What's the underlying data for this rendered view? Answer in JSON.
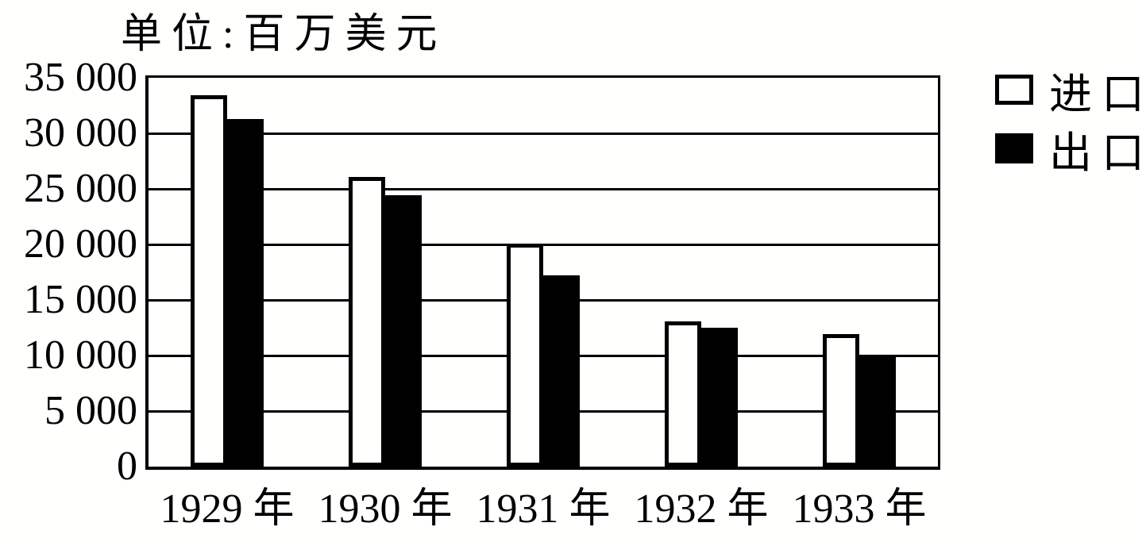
{
  "colors": {
    "foreground": "#000000",
    "background": "#fffffe",
    "import_bar_fill": "#ffffff",
    "export_bar_fill": "#000000"
  },
  "chart_data": {
    "type": "bar",
    "title": "单位:百万美元",
    "xlabel": "",
    "ylabel": "",
    "categories": [
      "1929 年",
      "1930 年",
      "1931 年",
      "1932 年",
      "1933 年"
    ],
    "series": [
      {
        "name": "进口",
        "color": "#ffffff",
        "values": [
          33400,
          26100,
          20100,
          13100,
          11900
        ]
      },
      {
        "name": "出口",
        "color": "#000000",
        "values": [
          31300,
          24400,
          17200,
          12500,
          10100
        ]
      }
    ],
    "ylim": [
      0,
      35000
    ],
    "ytick_interval": 5000,
    "ytick_labels": [
      "0",
      "5 000",
      "10 000",
      "15 000",
      "20 000",
      "25 000",
      "30 000",
      "35 000"
    ],
    "grid": true,
    "legend_position": "right"
  }
}
